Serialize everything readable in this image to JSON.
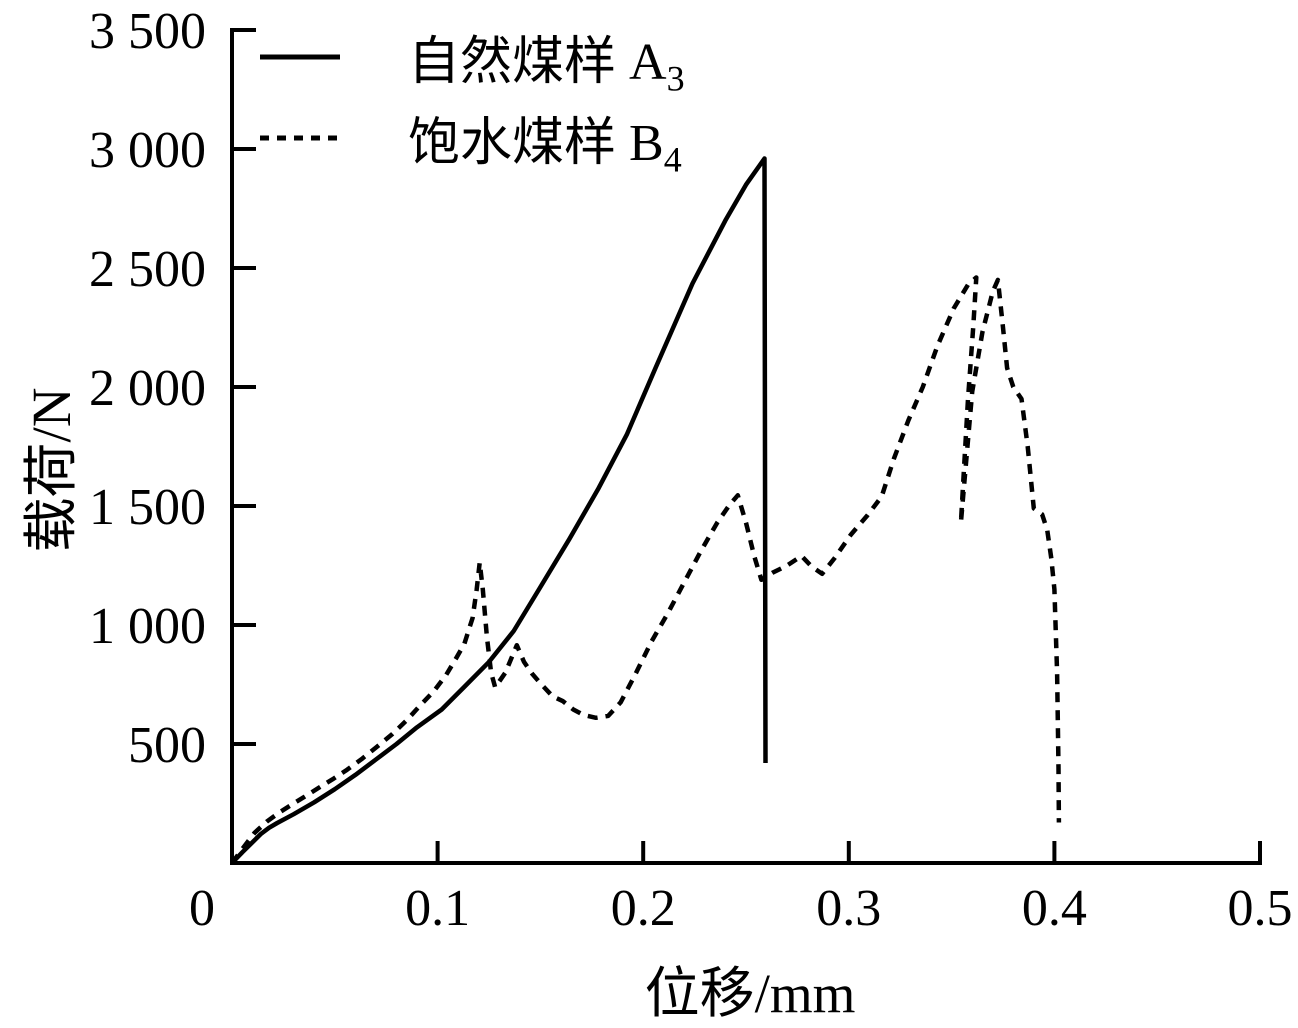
{
  "figure": {
    "background_color": "#ffffff",
    "ink_color": "#000000"
  },
  "chart_data": {
    "type": "line",
    "title": "",
    "xlabel": "位移/mm",
    "ylabel": "载荷/N",
    "xlim": [
      0,
      0.5
    ],
    "ylim": [
      0,
      3500
    ],
    "grid": false,
    "legend_position": "top-left-inside",
    "x_ticks": {
      "values": [
        0,
        0.1,
        0.2,
        0.3,
        0.4,
        0.5
      ],
      "labels": [
        "0",
        "0.1",
        "0.2",
        "0.3",
        "0.4",
        "0.5"
      ]
    },
    "y_ticks": {
      "values": [
        500,
        1000,
        1500,
        2000,
        2500,
        3000,
        3500
      ],
      "labels": [
        "500",
        "1 000",
        "1 500",
        "2 000",
        "2 500",
        "3 000",
        "3 500"
      ]
    },
    "series": [
      {
        "name": "自然煤样 A3",
        "label_text": "自然煤样 A",
        "label_sub": "3",
        "line_style": "solid",
        "color": "#000000",
        "peak_load_N": 2960,
        "peak_displacement_mm": 0.259,
        "points": [
          [
            0,
            0
          ],
          [
            0.005,
            45
          ],
          [
            0.01,
            88
          ],
          [
            0.014,
            122
          ],
          [
            0.018,
            148
          ],
          [
            0.022,
            168
          ],
          [
            0.03,
            205
          ],
          [
            0.04,
            255
          ],
          [
            0.05,
            310
          ],
          [
            0.06,
            370
          ],
          [
            0.07,
            435
          ],
          [
            0.08,
            500
          ],
          [
            0.09,
            570
          ],
          [
            0.102,
            645
          ],
          [
            0.113,
            740
          ],
          [
            0.125,
            845
          ],
          [
            0.137,
            975
          ],
          [
            0.149,
            1145
          ],
          [
            0.164,
            1360
          ],
          [
            0.178,
            1570
          ],
          [
            0.192,
            1800
          ],
          [
            0.206,
            2080
          ],
          [
            0.224,
            2435
          ],
          [
            0.24,
            2700
          ],
          [
            0.25,
            2850
          ],
          [
            0.259,
            2960
          ],
          [
            0.2595,
            420
          ]
        ]
      },
      {
        "name": "饱水煤样 B4",
        "label_text": "饱水煤样 B",
        "label_sub": "4",
        "line_style": "dashed",
        "color": "#000000",
        "peak_load_N": 2460,
        "peak_displacement_mm": 0.362,
        "points": [
          [
            0,
            0
          ],
          [
            0.006,
            70
          ],
          [
            0.011,
            127
          ],
          [
            0.017,
            175
          ],
          [
            0.023,
            212
          ],
          [
            0.029,
            245
          ],
          [
            0.035,
            277
          ],
          [
            0.042,
            315
          ],
          [
            0.049,
            352
          ],
          [
            0.056,
            392
          ],
          [
            0.063,
            436
          ],
          [
            0.07,
            485
          ],
          [
            0.078,
            542
          ],
          [
            0.085,
            600
          ],
          [
            0.091,
            657
          ],
          [
            0.098,
            720
          ],
          [
            0.104,
            788
          ],
          [
            0.109,
            860
          ],
          [
            0.113,
            920
          ],
          [
            0.117,
            1030
          ],
          [
            0.119,
            1150
          ],
          [
            0.1205,
            1262
          ],
          [
            0.122,
            1150
          ],
          [
            0.124,
            950
          ],
          [
            0.126,
            800
          ],
          [
            0.128,
            738
          ],
          [
            0.133,
            800
          ],
          [
            0.1385,
            915
          ],
          [
            0.142,
            845
          ],
          [
            0.146,
            795
          ],
          [
            0.15,
            755
          ],
          [
            0.156,
            700
          ],
          [
            0.161,
            680
          ],
          [
            0.166,
            645
          ],
          [
            0.171,
            622
          ],
          [
            0.177,
            610
          ],
          [
            0.183,
            618
          ],
          [
            0.189,
            675
          ],
          [
            0.196,
            790
          ],
          [
            0.204,
            930
          ],
          [
            0.212,
            1050
          ],
          [
            0.22,
            1180
          ],
          [
            0.228,
            1310
          ],
          [
            0.236,
            1430
          ],
          [
            0.242,
            1505
          ],
          [
            0.246,
            1545
          ],
          [
            0.25,
            1430
          ],
          [
            0.254,
            1290
          ],
          [
            0.2575,
            1190
          ],
          [
            0.263,
            1220
          ],
          [
            0.27,
            1250
          ],
          [
            0.277,
            1290
          ],
          [
            0.282,
            1245
          ],
          [
            0.287,
            1215
          ],
          [
            0.293,
            1280
          ],
          [
            0.301,
            1380
          ],
          [
            0.309,
            1460
          ],
          [
            0.316,
            1540
          ],
          [
            0.322,
            1700
          ],
          [
            0.329,
            1860
          ],
          [
            0.336,
            2000
          ],
          [
            0.343,
            2170
          ],
          [
            0.351,
            2330
          ],
          [
            0.358,
            2430
          ],
          [
            0.362,
            2460
          ],
          [
            0.3605,
            2250
          ],
          [
            0.358,
            1950
          ],
          [
            0.356,
            1650
          ],
          [
            0.3545,
            1430
          ],
          [
            0.357,
            1680
          ],
          [
            0.36,
            1980
          ],
          [
            0.365,
            2230
          ],
          [
            0.37,
            2400
          ],
          [
            0.3725,
            2450
          ],
          [
            0.375,
            2250
          ],
          [
            0.377,
            2080
          ],
          [
            0.38,
            2000
          ],
          [
            0.384,
            1950
          ],
          [
            0.387,
            1750
          ],
          [
            0.39,
            1490
          ],
          [
            0.394,
            1465
          ],
          [
            0.3965,
            1400
          ],
          [
            0.3985,
            1280
          ],
          [
            0.4,
            1150
          ],
          [
            0.4013,
            800
          ],
          [
            0.402,
            400
          ],
          [
            0.4022,
            170
          ]
        ]
      }
    ]
  }
}
